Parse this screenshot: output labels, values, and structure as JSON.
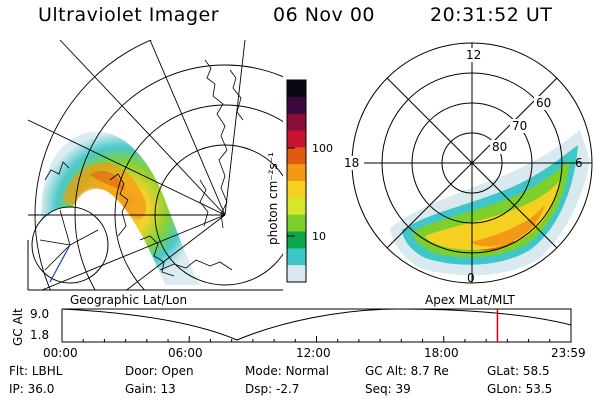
{
  "header": {
    "instrument": "Ultraviolet Imager",
    "date": "06 Nov 00",
    "time": "20:31:52 UT"
  },
  "colorbar": {
    "title": "photon cm⁻²s⁻¹",
    "ticks": [
      "100",
      "10"
    ],
    "colors": [
      "#d8eaf0",
      "#3fc6c6",
      "#0aa64e",
      "#7fcf2a",
      "#d6e62a",
      "#f5d020",
      "#f29a16",
      "#e05a10",
      "#c8142e",
      "#8a0e3a",
      "#3a0a3e",
      "#0a0614"
    ]
  },
  "left_map": {
    "caption": "Geographic Lat/Lon"
  },
  "right_dial": {
    "caption": "Apex MLat/MLT",
    "mlt_labels": [
      "12",
      "18",
      "6",
      "0"
    ],
    "lat_labels": [
      "60",
      "70",
      "80"
    ]
  },
  "timeline": {
    "ylabel": "GC Alt",
    "yticks": [
      "9.0",
      "1.8"
    ],
    "xticks": [
      "00:00",
      "06:00",
      "12:00",
      "18:00",
      "23:59"
    ],
    "marker_time": "20:31:52",
    "marker_color": "#d00000"
  },
  "status": {
    "flt_label": "Flt:",
    "flt_value": "LBHL",
    "ip_label": "IP:",
    "ip_value": "36.0",
    "door_label": "Door:",
    "door_value": "Open",
    "gain_label": "Gain:",
    "gain_value": "13",
    "mode_label": "Mode:",
    "mode_value": "Normal",
    "dsp_label": "Dsp:",
    "dsp_value": "-2.7",
    "gcalt_label": "GC Alt:",
    "gcalt_value": "8.7 Re",
    "seq_label": "Seq:",
    "seq_value": "39",
    "glat_label": "GLat:",
    "glat_value": "58.5",
    "glon_label": "GLon:",
    "glon_value": "53.5"
  }
}
